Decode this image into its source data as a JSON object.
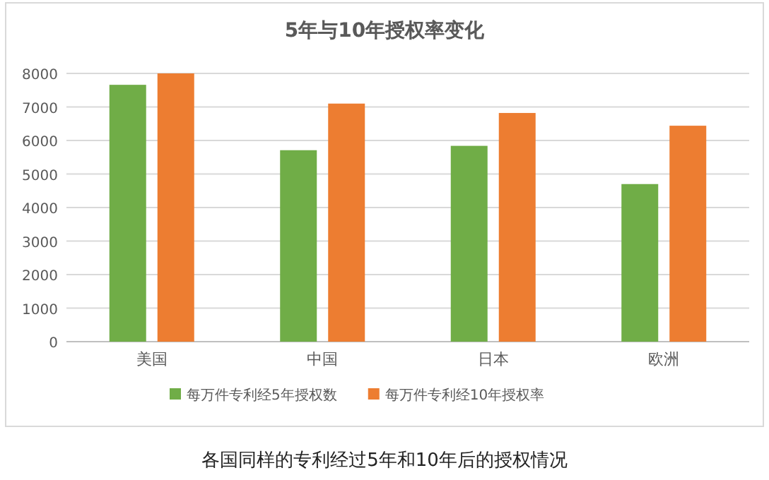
{
  "chart_data": {
    "type": "bar",
    "title": "5年与10年授权率变化",
    "categories": [
      "美国",
      "中国",
      "日本",
      "欧洲"
    ],
    "series": [
      {
        "name": "每万件专利经5年授权数",
        "color": "#70ad47",
        "values": [
          7660,
          5710,
          5840,
          4700
        ]
      },
      {
        "name": "每万件专利经10年授权率",
        "color": "#ed7d31",
        "values": [
          8000,
          7100,
          6820,
          6440
        ]
      }
    ],
    "ylim": [
      0,
      8000
    ],
    "yticks": [
      0,
      1000,
      2000,
      3000,
      4000,
      5000,
      6000,
      7000,
      8000
    ],
    "grid": "y",
    "legend": "bottom",
    "annotations": [
      "各国同样的专利经过5年和10年后的授权情况"
    ]
  }
}
